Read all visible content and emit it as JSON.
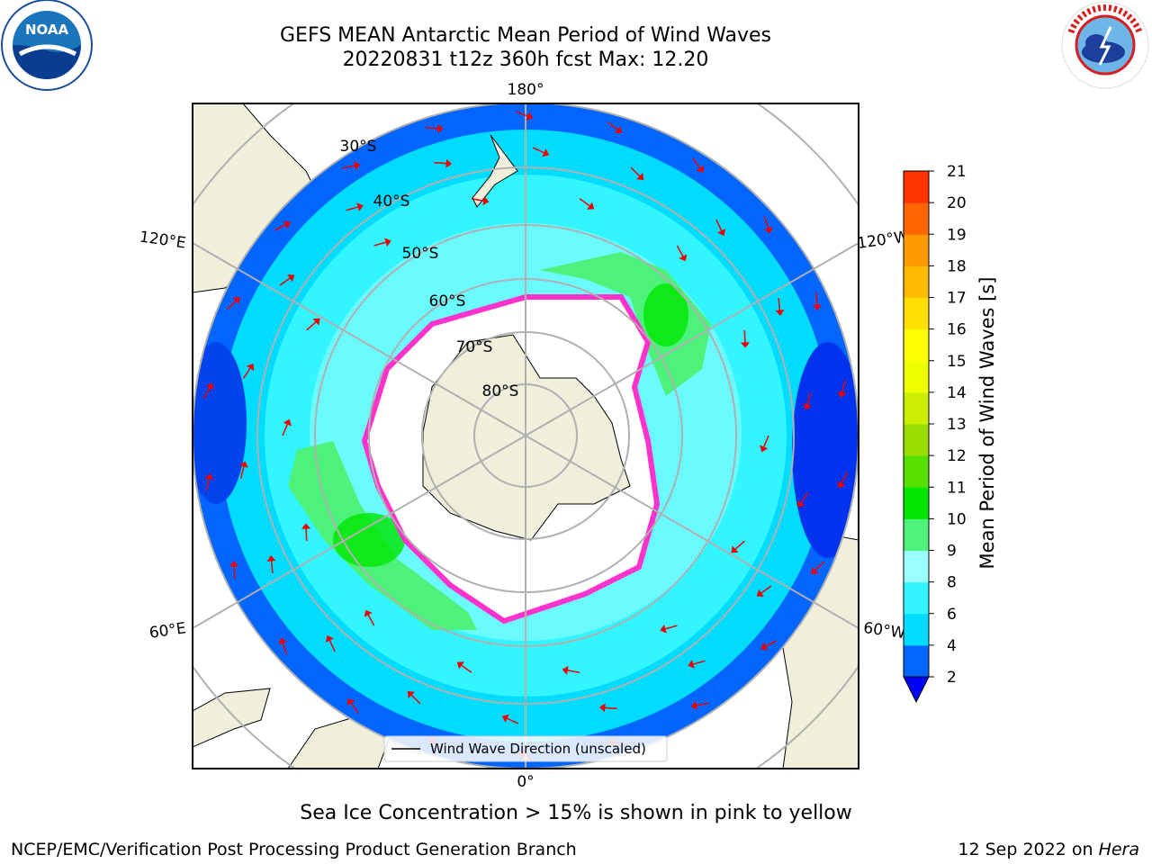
{
  "title": {
    "line1": "GEFS MEAN Antarctic Mean Period of Wind Waves",
    "line2": "20220831 t12z 360h fcst   Max: 12.20"
  },
  "map": {
    "projection": "south-polar-stereographic",
    "longitude_labels": [
      "180°",
      "120°E",
      "120°W",
      "60°E",
      "60°W",
      "0°"
    ],
    "latitude_labels": [
      "30°S",
      "40°S",
      "50°S",
      "60°S",
      "70°S",
      "80°S"
    ],
    "legend_label": "Wind Wave Direction (unscaled)",
    "max_value": 12.2
  },
  "colorbar": {
    "label": "Mean Period of Wind Waves [s]",
    "ticks": [
      2,
      4,
      6,
      8,
      9,
      10,
      11,
      12,
      13,
      14,
      15,
      16,
      17,
      18,
      19,
      20,
      21
    ],
    "colors": [
      "#0066ff",
      "#00dcff",
      "#33f5ff",
      "#99ffff",
      "#4cf27a",
      "#00e600",
      "#55e000",
      "#99dd00",
      "#ccee00",
      "#eeff00",
      "#ffff00",
      "#ffe000",
      "#ffbb00",
      "#ff9900",
      "#ff6600",
      "#ff3300",
      "#ff0000"
    ],
    "under_color": "#0000ff"
  },
  "caption": "Sea Ice Concentration > 15% is shown in pink to yellow",
  "footer": {
    "org": "NCEP/EMC/Verification Post Processing Product Generation Branch",
    "date": "12 Sep 2022 on ",
    "machine": "Hera"
  },
  "logos": {
    "left": {
      "icon": "noaa-logo",
      "text": "NOAA"
    },
    "right": {
      "icon": "nws-logo",
      "text": "NATIONAL WEATHER SERVICE"
    }
  },
  "colors": {
    "land": "#efefdc",
    "ice_edge": "#ff33cc",
    "arrow": "#ee0000",
    "grid": "#b0b0b0",
    "ocean_deep": "#0066ff",
    "ocean_mid": "#00dcff",
    "ocean_light": "#33f5ff",
    "wave_green": "#4cf27a"
  }
}
